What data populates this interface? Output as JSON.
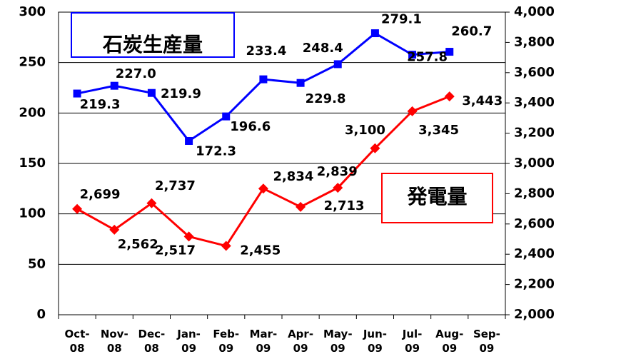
{
  "chart_data": {
    "type": "line",
    "categories": [
      "Oct-08",
      "Nov-08",
      "Dec-08",
      "Jan-09",
      "Feb-09",
      "Mar-09",
      "Apr-09",
      "May-09",
      "Jun-09",
      "Jul-09",
      "Aug-09",
      "Sep-09"
    ],
    "series": [
      {
        "name": "石炭生産量",
        "color": "#0000ff",
        "marker": "square",
        "values": [
          219.3,
          227.0,
          219.9,
          172.3,
          196.6,
          233.4,
          229.8,
          248.4,
          279.1,
          257.8,
          260.7,
          null
        ],
        "value_labels": [
          "219.3",
          "227.0",
          "219.9",
          "172.3",
          "196.6",
          "233.4",
          "229.8",
          "248.4",
          "279.1",
          "257.8",
          "260.7",
          null
        ]
      },
      {
        "name": "発電量",
        "color": "#ff0000",
        "marker": "diamond",
        "axis": "y2",
        "values": [
          2699,
          2562,
          2737,
          2517,
          2455,
          2834,
          2713,
          2839,
          3100,
          3345,
          3443,
          null
        ],
        "value_labels": [
          "2,699",
          "2,562",
          "2,737",
          "2,517",
          "2,455",
          "2,834",
          "2,713",
          "2,839",
          "3,100",
          "3,345",
          "3,443",
          null
        ]
      }
    ],
    "ylim": [
      0,
      300
    ],
    "yticks": [
      0,
      50,
      100,
      150,
      200,
      250,
      300
    ],
    "y2lim": [
      2000,
      4000
    ],
    "y2ticks": [
      {
        "value": 2000,
        "label": "2,000"
      },
      {
        "value": 2200,
        "label": "2,200"
      },
      {
        "value": 2400,
        "label": "2,400"
      },
      {
        "value": 2600,
        "label": "2,600"
      },
      {
        "value": 2800,
        "label": "2,800"
      },
      {
        "value": 3000,
        "label": "3,000"
      },
      {
        "value": 3200,
        "label": "3,200"
      },
      {
        "value": 3400,
        "label": "3,400"
      },
      {
        "value": 3600,
        "label": "3,600"
      },
      {
        "value": 3800,
        "label": "3,800"
      },
      {
        "value": 4000,
        "label": "4,000"
      }
    ],
    "grid": true
  }
}
